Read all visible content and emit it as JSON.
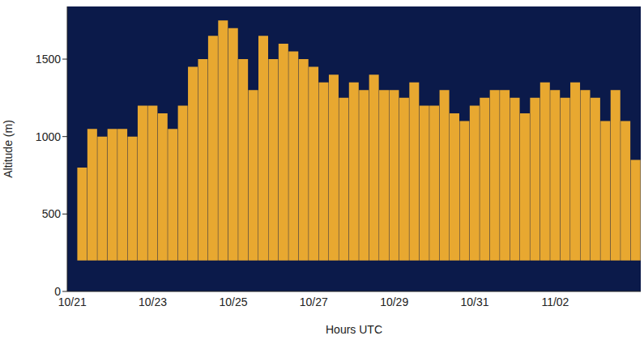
{
  "chart_data": {
    "type": "bar",
    "x_label": "Hours UTC",
    "y_label": "Altitude (m)",
    "categories": [
      "10/21",
      null,
      null,
      null,
      null,
      null,
      null,
      null,
      "10/23",
      null,
      null,
      null,
      null,
      null,
      null,
      null,
      "10/25",
      null,
      null,
      null,
      null,
      null,
      null,
      null,
      "10/27",
      null,
      null,
      null,
      null,
      null,
      null,
      null,
      "10/29",
      null,
      null,
      null,
      null,
      null,
      null,
      null,
      "10/31",
      null,
      null,
      null,
      null,
      null,
      null,
      null,
      "11/02",
      null,
      null,
      null,
      null,
      null,
      null,
      null,
      null
    ],
    "values": [
      null,
      800,
      1050,
      1000,
      1050,
      1050,
      1000,
      1200,
      1200,
      1150,
      1050,
      1200,
      1450,
      1500,
      1650,
      1750,
      1700,
      1500,
      1300,
      1650,
      1500,
      1600,
      1550,
      1500,
      1450,
      1350,
      1400,
      1250,
      1350,
      1300,
      1400,
      1300,
      1300,
      1250,
      1350,
      1200,
      1200,
      1300,
      1150,
      1100,
      1200,
      1250,
      1300,
      1300,
      1250,
      1150,
      1250,
      1350,
      1300,
      1250,
      1350,
      1300,
      1250,
      1100,
      1300,
      1100,
      850
    ],
    "base": 200,
    "color": "#e8a830",
    "ylim": [
      0,
      1840
    ],
    "yticks": [
      0,
      500,
      1000,
      1500
    ],
    "grid": false
  }
}
